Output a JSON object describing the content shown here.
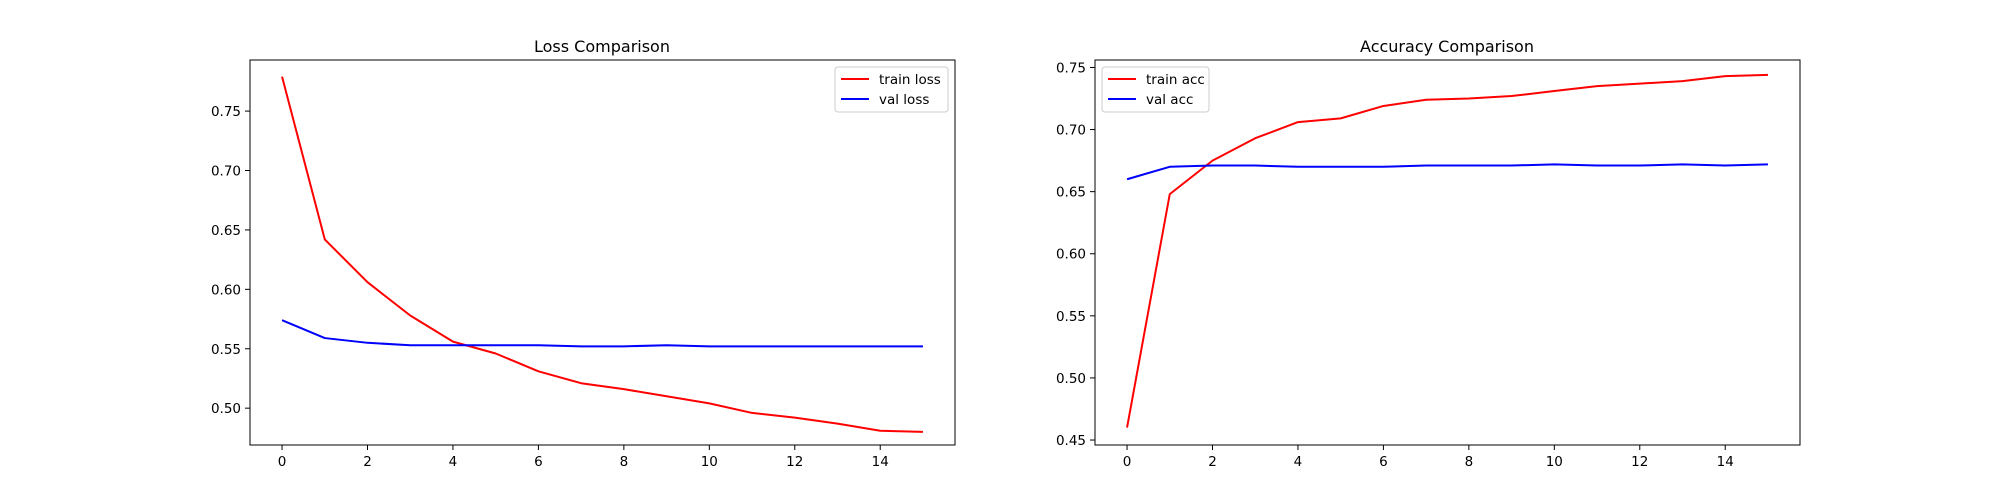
{
  "chart_data": [
    {
      "type": "line",
      "title": "Loss Comparison",
      "xlabel": "",
      "ylabel": "",
      "x": [
        0,
        1,
        2,
        3,
        4,
        5,
        6,
        7,
        8,
        9,
        10,
        11,
        12,
        13,
        14,
        15
      ],
      "xlim": [
        -0.75,
        15.75
      ],
      "ylim": [
        0.469,
        0.793
      ],
      "xticks": [
        0,
        2,
        4,
        6,
        8,
        10,
        12,
        14
      ],
      "yticks": [
        0.5,
        0.55,
        0.6,
        0.65,
        0.7,
        0.75
      ],
      "xtick_labels": [
        "0",
        "2",
        "4",
        "6",
        "8",
        "10",
        "12",
        "14"
      ],
      "ytick_labels": [
        "0.50",
        "0.55",
        "0.60",
        "0.65",
        "0.70",
        "0.75"
      ],
      "grid": false,
      "legend_position": "top-right",
      "series": [
        {
          "name": "train loss",
          "color": "#ff0000",
          "values": [
            0.779,
            0.642,
            0.606,
            0.578,
            0.556,
            0.546,
            0.531,
            0.521,
            0.516,
            0.51,
            0.504,
            0.496,
            0.492,
            0.487,
            0.481,
            0.48
          ]
        },
        {
          "name": "val loss",
          "color": "#0000ff",
          "values": [
            0.574,
            0.559,
            0.555,
            0.553,
            0.553,
            0.553,
            0.553,
            0.552,
            0.552,
            0.553,
            0.552,
            0.552,
            0.552,
            0.552,
            0.552,
            0.552
          ]
        }
      ]
    },
    {
      "type": "line",
      "title": "Accuracy Comparison",
      "xlabel": "",
      "ylabel": "",
      "x": [
        0,
        1,
        2,
        3,
        4,
        5,
        6,
        7,
        8,
        9,
        10,
        11,
        12,
        13,
        14,
        15
      ],
      "xlim": [
        -0.75,
        15.75
      ],
      "ylim": [
        0.446,
        0.756
      ],
      "xticks": [
        0,
        2,
        4,
        6,
        8,
        10,
        12,
        14
      ],
      "yticks": [
        0.45,
        0.5,
        0.55,
        0.6,
        0.65,
        0.7,
        0.75
      ],
      "xtick_labels": [
        "0",
        "2",
        "4",
        "6",
        "8",
        "10",
        "12",
        "14"
      ],
      "ytick_labels": [
        "0.45",
        "0.50",
        "0.55",
        "0.60",
        "0.65",
        "0.70",
        "0.75"
      ],
      "grid": false,
      "legend_position": "top-left",
      "series": [
        {
          "name": "train acc",
          "color": "#ff0000",
          "values": [
            0.46,
            0.648,
            0.675,
            0.693,
            0.706,
            0.709,
            0.719,
            0.724,
            0.725,
            0.727,
            0.731,
            0.735,
            0.737,
            0.739,
            0.743,
            0.744
          ]
        },
        {
          "name": "val acc",
          "color": "#0000ff",
          "values": [
            0.66,
            0.67,
            0.671,
            0.671,
            0.67,
            0.67,
            0.67,
            0.671,
            0.671,
            0.671,
            0.672,
            0.671,
            0.671,
            0.672,
            0.671,
            0.672
          ]
        }
      ]
    }
  ]
}
